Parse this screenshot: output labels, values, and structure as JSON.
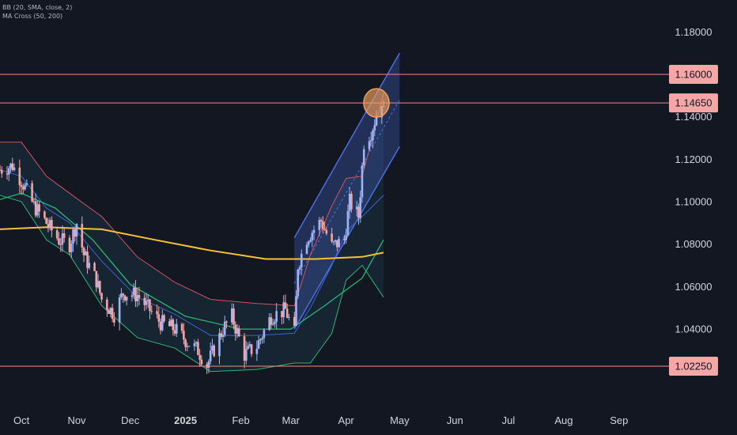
{
  "legend": {
    "bb": "BB (20, SMA, close, 2)",
    "ma": "MA Cross (50, 200)"
  },
  "colors": {
    "background": "#131722",
    "up": "#9fb4f5",
    "down": "#f5a3a3",
    "level_line": "#f28b82",
    "level_label_bg": "#f7a6a6",
    "channel": "#4a6ee0",
    "bb_upper": "#d0525f",
    "bb_lower": "#2bb673",
    "bb_basis": "#3a63d8",
    "ma50": "#2bb673",
    "ma200": "#f5c23a",
    "marker": "#f5a05a"
  },
  "chart_data": {
    "type": "candlestick",
    "title": "",
    "y_ticks": [
      "1.18000",
      "1.16000",
      "1.14000",
      "1.12000",
      "1.10000",
      "1.08000",
      "1.06000",
      "1.04000",
      "1.02250"
    ],
    "y_tick_values": [
      1.18,
      1.16,
      1.14,
      1.12,
      1.1,
      1.08,
      1.06,
      1.04,
      1.0225
    ],
    "ylim": [
      1.005,
      1.195
    ],
    "x_ticks": [
      {
        "label": "Oct",
        "date": "2024-10-01",
        "bold": false
      },
      {
        "label": "Nov",
        "date": "2024-11-01",
        "bold": false
      },
      {
        "label": "Dec",
        "date": "2024-12-01",
        "bold": false
      },
      {
        "label": "2025",
        "date": "2025-01-01",
        "bold": true
      },
      {
        "label": "Feb",
        "date": "2025-02-01",
        "bold": false
      },
      {
        "label": "Mar",
        "date": "2025-03-01",
        "bold": false
      },
      {
        "label": "Apr",
        "date": "2025-04-01",
        "bold": false
      },
      {
        "label": "May",
        "date": "2025-05-01",
        "bold": false
      },
      {
        "label": "Jun",
        "date": "2025-06-01",
        "bold": false
      },
      {
        "label": "Jul",
        "date": "2025-07-01",
        "bold": false
      },
      {
        "label": "Aug",
        "date": "2025-08-01",
        "bold": false
      },
      {
        "label": "Sep",
        "date": "2025-09-01",
        "bold": false
      }
    ],
    "xlim": [
      "2024-09-19",
      "2025-09-29"
    ],
    "horizontal_levels": [
      {
        "label": "1.16000",
        "value": 1.16
      },
      {
        "label": "1.14650",
        "value": 1.1465
      },
      {
        "label": "1.02250",
        "value": 1.0225
      }
    ],
    "price_path": [
      [
        "2024-09-19",
        1.115
      ],
      [
        "2024-09-26",
        1.117
      ],
      [
        "2024-10-01",
        1.11
      ],
      [
        "2024-10-08",
        1.098
      ],
      [
        "2024-10-15",
        1.09
      ],
      [
        "2024-10-22",
        1.082
      ],
      [
        "2024-10-28",
        1.08
      ],
      [
        "2024-11-01",
        1.09
      ],
      [
        "2024-11-05",
        1.075
      ],
      [
        "2024-11-12",
        1.063
      ],
      [
        "2024-11-15",
        1.054
      ],
      [
        "2024-11-22",
        1.047
      ],
      [
        "2024-11-27",
        1.057
      ],
      [
        "2024-12-05",
        1.056
      ],
      [
        "2024-12-12",
        1.049
      ],
      [
        "2024-12-18",
        1.043
      ],
      [
        "2024-12-26",
        1.04
      ],
      [
        "2025-01-02",
        1.034
      ],
      [
        "2025-01-08",
        1.03
      ],
      [
        "2025-01-13",
        1.023
      ],
      [
        "2025-01-22",
        1.04
      ],
      [
        "2025-01-27",
        1.046
      ],
      [
        "2025-02-03",
        1.028
      ],
      [
        "2025-02-10",
        1.032
      ],
      [
        "2025-02-18",
        1.046
      ],
      [
        "2025-02-26",
        1.049
      ],
      [
        "2025-03-03",
        1.038
      ],
      [
        "2025-03-05",
        1.07
      ],
      [
        "2025-03-10",
        1.083
      ],
      [
        "2025-03-18",
        1.091
      ],
      [
        "2025-03-24",
        1.079
      ],
      [
        "2025-03-31",
        1.082
      ],
      [
        "2025-04-03",
        1.1
      ],
      [
        "2025-04-08",
        1.093
      ],
      [
        "2025-04-11",
        1.128
      ],
      [
        "2025-04-15",
        1.133
      ],
      [
        "2025-04-21",
        1.148
      ],
      [
        "2025-04-22",
        1.142
      ]
    ],
    "bollinger_bands": {
      "upper": [
        [
          "2024-09-19",
          1.128
        ],
        [
          "2024-10-01",
          1.128
        ],
        [
          "2024-10-15",
          1.112
        ],
        [
          "2024-10-28",
          1.104
        ],
        [
          "2024-11-15",
          1.093
        ],
        [
          "2024-12-05",
          1.074
        ],
        [
          "2024-12-26",
          1.062
        ],
        [
          "2025-01-15",
          1.054
        ],
        [
          "2025-02-10",
          1.052
        ],
        [
          "2025-03-03",
          1.051
        ],
        [
          "2025-03-12",
          1.075
        ],
        [
          "2025-03-24",
          1.098
        ],
        [
          "2025-04-01",
          1.111
        ],
        [
          "2025-04-10",
          1.112
        ],
        [
          "2025-04-22",
          1.151
        ]
      ],
      "lower": [
        [
          "2024-09-19",
          1.103
        ],
        [
          "2024-10-01",
          1.1
        ],
        [
          "2024-10-15",
          1.082
        ],
        [
          "2024-10-28",
          1.075
        ],
        [
          "2024-11-15",
          1.051
        ],
        [
          "2024-12-05",
          1.036
        ],
        [
          "2024-12-26",
          1.031
        ],
        [
          "2025-01-15",
          1.02
        ],
        [
          "2025-02-10",
          1.021
        ],
        [
          "2025-03-03",
          1.024
        ],
        [
          "2025-03-12",
          1.024
        ],
        [
          "2025-03-24",
          1.038
        ],
        [
          "2025-04-01",
          1.063
        ],
        [
          "2025-04-10",
          1.07
        ],
        [
          "2025-04-22",
          1.055
        ]
      ],
      "basis": [
        [
          "2024-09-19",
          1.115
        ],
        [
          "2024-10-01",
          1.112
        ],
        [
          "2024-10-15",
          1.097
        ],
        [
          "2024-10-28",
          1.09
        ],
        [
          "2024-11-15",
          1.072
        ],
        [
          "2024-12-05",
          1.055
        ],
        [
          "2024-12-26",
          1.047
        ],
        [
          "2025-01-15",
          1.037
        ],
        [
          "2025-02-10",
          1.037
        ],
        [
          "2025-03-03",
          1.038
        ],
        [
          "2025-03-12",
          1.05
        ],
        [
          "2025-03-24",
          1.07
        ],
        [
          "2025-04-01",
          1.086
        ],
        [
          "2025-04-10",
          1.093
        ],
        [
          "2025-04-22",
          1.103
        ]
      ]
    },
    "ma_cross": {
      "ma50": [
        [
          "2024-09-19",
          1.101
        ],
        [
          "2024-10-01",
          1.104
        ],
        [
          "2024-10-20",
          1.097
        ],
        [
          "2024-11-10",
          1.082
        ],
        [
          "2024-12-01",
          1.061
        ],
        [
          "2025-01-01",
          1.046
        ],
        [
          "2025-02-01",
          1.04
        ],
        [
          "2025-03-01",
          1.04
        ],
        [
          "2025-03-20",
          1.051
        ],
        [
          "2025-04-10",
          1.064
        ],
        [
          "2025-04-22",
          1.082
        ]
      ],
      "ma200": [
        [
          "2024-09-19",
          1.087
        ],
        [
          "2024-10-15",
          1.088
        ],
        [
          "2024-11-15",
          1.087
        ],
        [
          "2024-12-15",
          1.082
        ],
        [
          "2025-01-15",
          1.077
        ],
        [
          "2025-02-15",
          1.073
        ],
        [
          "2025-03-15",
          1.073
        ],
        [
          "2025-04-10",
          1.074
        ],
        [
          "2025-04-22",
          1.076
        ]
      ]
    },
    "channel": {
      "start": "2025-03-03",
      "end": "2025-05-01",
      "upper": [
        1.083,
        1.17
      ],
      "lower": [
        1.04,
        1.126
      ]
    },
    "marker": {
      "date": "2025-04-18",
      "value": 1.1465
    }
  }
}
